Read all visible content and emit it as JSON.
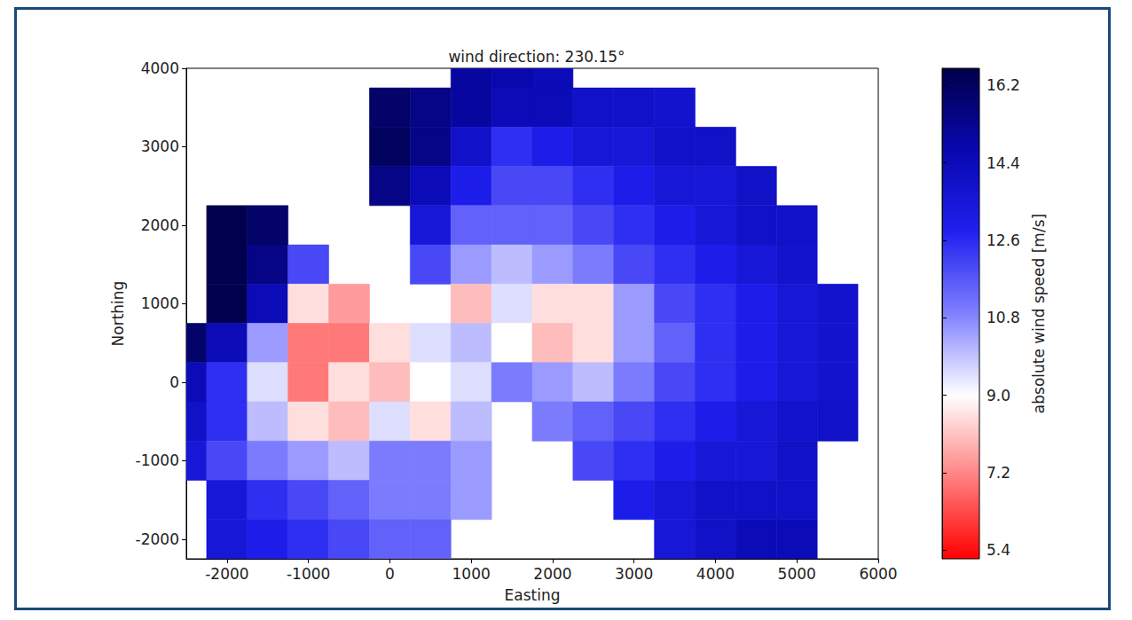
{
  "chart_data": {
    "type": "heatmap",
    "title": "wind direction: 230.15°",
    "xlabel": "Easting",
    "ylabel": "Northing",
    "xlim": [
      -2500,
      6000
    ],
    "xticks": [
      -2000,
      -1000,
      0,
      1000,
      2000,
      3000,
      4000,
      5000,
      6000
    ],
    "ylim": [
      -2250,
      4000
    ],
    "yticks": [
      -2000,
      -1000,
      0,
      1000,
      2000,
      3000,
      4000
    ],
    "grid": false,
    "x": [
      -2500,
      -2000,
      -1500,
      -1000,
      -500,
      0,
      500,
      1000,
      1500,
      2000,
      2500,
      3000,
      3500,
      4000,
      4500,
      5000,
      5500
    ],
    "y": [
      4000,
      3500,
      3000,
      2500,
      2000,
      1500,
      1000,
      500,
      0,
      -500,
      -1000,
      -1500,
      -2000
    ],
    "cells": [
      [
        null,
        null,
        null,
        null,
        null,
        null,
        null,
        15.0,
        14.8,
        14.5,
        null,
        null,
        null,
        null,
        null,
        null,
        null
      ],
      [
        null,
        null,
        null,
        null,
        null,
        16.0,
        15.5,
        15.0,
        14.5,
        14.5,
        14.0,
        14.0,
        13.8,
        null,
        null,
        null,
        null
      ],
      [
        null,
        null,
        null,
        null,
        null,
        16.2,
        15.5,
        14.0,
        12.5,
        13.0,
        13.5,
        13.5,
        14.0,
        14.0,
        null,
        null,
        null
      ],
      [
        null,
        null,
        null,
        null,
        null,
        15.5,
        14.5,
        13.0,
        12.0,
        12.0,
        12.5,
        13.0,
        13.5,
        13.5,
        14.0,
        null,
        null
      ],
      [
        null,
        16.5,
        16.0,
        null,
        null,
        null,
        13.5,
        11.5,
        11.5,
        11.5,
        12.0,
        12.5,
        13.0,
        13.5,
        14.0,
        14.0,
        null
      ],
      [
        null,
        16.5,
        15.5,
        12.0,
        null,
        null,
        12.0,
        10.5,
        10.0,
        10.5,
        11.0,
        12.0,
        12.5,
        13.0,
        13.5,
        13.8,
        null
      ],
      [
        null,
        16.5,
        14.5,
        8.5,
        7.5,
        null,
        null,
        8.0,
        9.5,
        8.5,
        8.5,
        10.5,
        12.0,
        12.5,
        13.0,
        13.5,
        13.8
      ],
      [
        16.0,
        14.5,
        10.5,
        7.0,
        7.0,
        8.5,
        9.5,
        10.0,
        9.0,
        8.0,
        8.5,
        10.5,
        11.5,
        12.5,
        13.0,
        13.5,
        13.8
      ],
      [
        14.5,
        12.5,
        9.5,
        7.0,
        8.5,
        8.0,
        9.0,
        9.5,
        11.0,
        10.5,
        10.0,
        11.0,
        12.0,
        12.5,
        13.0,
        13.5,
        13.8
      ],
      [
        14.0,
        12.5,
        10.0,
        8.5,
        8.0,
        9.5,
        8.5,
        10.0,
        null,
        11.0,
        11.5,
        12.0,
        12.5,
        13.0,
        13.5,
        13.8,
        14.0
      ],
      [
        13.5,
        12.0,
        11.0,
        10.5,
        10.0,
        11.0,
        11.0,
        10.5,
        null,
        null,
        12.0,
        12.5,
        13.0,
        13.5,
        13.5,
        14.0,
        null
      ],
      [
        null,
        13.5,
        12.5,
        12.0,
        11.5,
        11.0,
        11.0,
        10.5,
        null,
        null,
        null,
        13.0,
        13.5,
        14.0,
        14.0,
        14.0,
        null
      ],
      [
        null,
        13.5,
        13.0,
        12.5,
        12.0,
        11.5,
        11.5,
        null,
        null,
        null,
        null,
        null,
        13.5,
        14.0,
        14.5,
        14.5,
        null
      ]
    ],
    "colorbar": {
      "label": "absolute wind speed [m/s]",
      "lim": [
        5.2,
        16.6
      ],
      "ticks": [
        5.4,
        7.2,
        {
          "value": 9,
          "label": "9.0"
        },
        10.8,
        12.6,
        14.4,
        16.2
      ]
    }
  }
}
